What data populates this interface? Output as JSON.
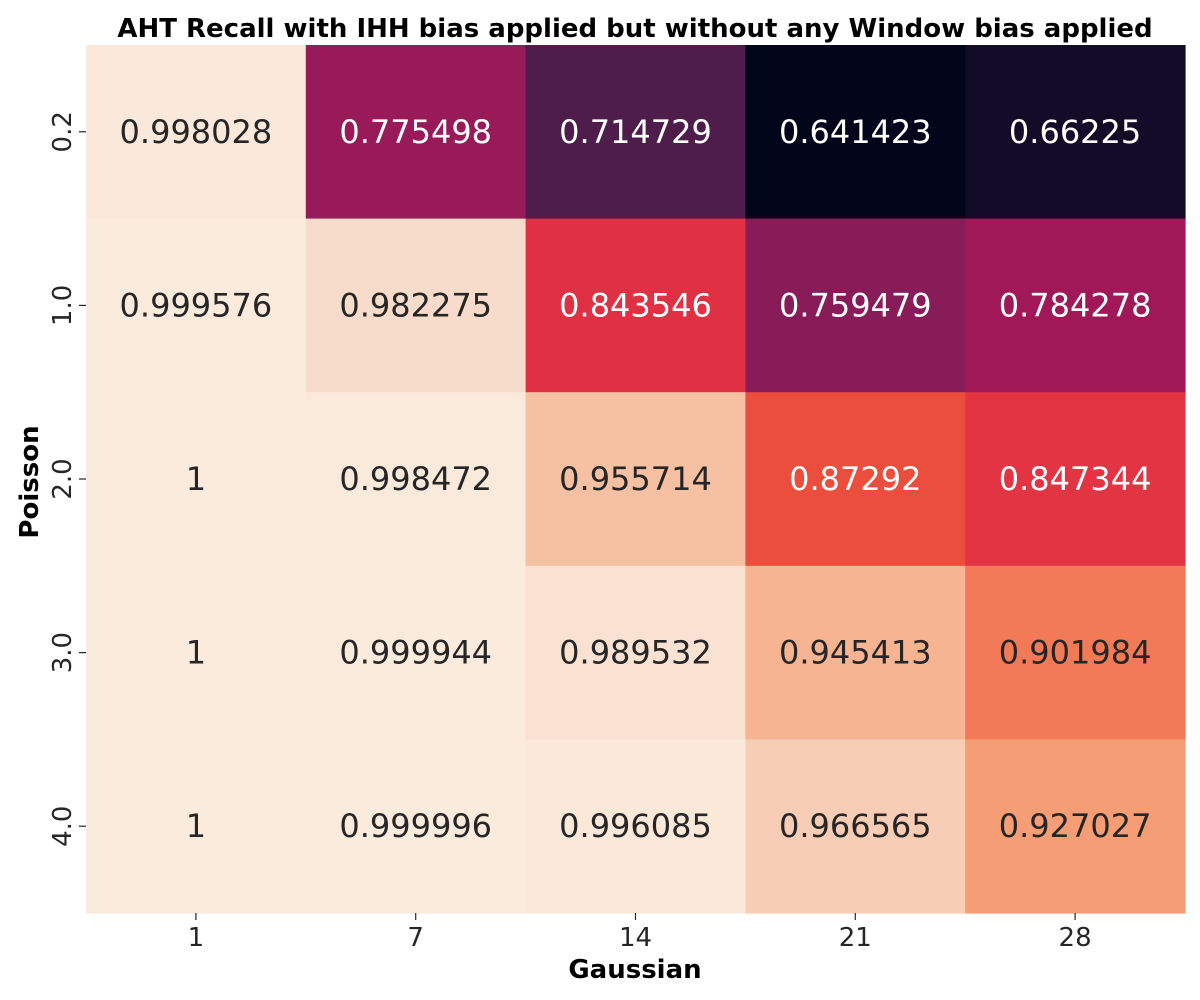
{
  "chart_data": {
    "type": "heatmap",
    "title": "AHT Recall with IHH bias applied but without any Window bias applied",
    "xlabel": "Gaussian",
    "ylabel": "Poisson",
    "x_categories": [
      "1",
      "7",
      "14",
      "21",
      "28"
    ],
    "y_categories": [
      "0.2",
      "1.0",
      "2.0",
      "3.0",
      "4.0"
    ],
    "values": [
      [
        0.998028,
        0.775498,
        0.714729,
        0.641423,
        0.66225
      ],
      [
        0.999576,
        0.982275,
        0.843546,
        0.759479,
        0.784278
      ],
      [
        1,
        0.998472,
        0.955714,
        0.87292,
        0.847344
      ],
      [
        1,
        0.999944,
        0.989532,
        0.945413,
        0.901984
      ],
      [
        1,
        0.999996,
        0.996085,
        0.966565,
        0.927027
      ]
    ],
    "cell_labels": [
      [
        "0.998028",
        "0.775498",
        "0.714729",
        "0.641423",
        "0.66225"
      ],
      [
        "0.999576",
        "0.982275",
        "0.843546",
        "0.759479",
        "0.784278"
      ],
      [
        "1",
        "0.998472",
        "0.955714",
        "0.87292",
        "0.847344"
      ],
      [
        "1",
        "0.999944",
        "0.989532",
        "0.945413",
        "0.901984"
      ],
      [
        "1",
        "0.999996",
        "0.996085",
        "0.966565",
        "0.927027"
      ]
    ],
    "colormap": "rocket",
    "value_range": [
      0.641423,
      1
    ],
    "colorbar": false,
    "grid": false,
    "colors": {
      "low": "#03051a",
      "high": "#faebdd",
      "text_dark": "#262626",
      "text_light": "#ffffff"
    }
  }
}
